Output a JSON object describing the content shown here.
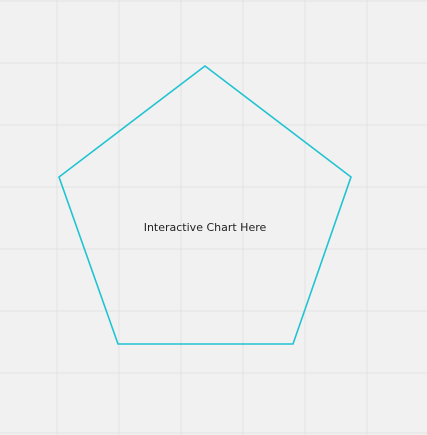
{
  "canvas": {
    "background_color": "#f1f1f1",
    "grid": "on",
    "grid_color": "#e2e2e2"
  },
  "shape": {
    "type": "pentagon",
    "stroke_color": "#20c3d2",
    "fill": "none"
  },
  "label": {
    "text": "Interactive Chart Here",
    "color": "#222222"
  }
}
